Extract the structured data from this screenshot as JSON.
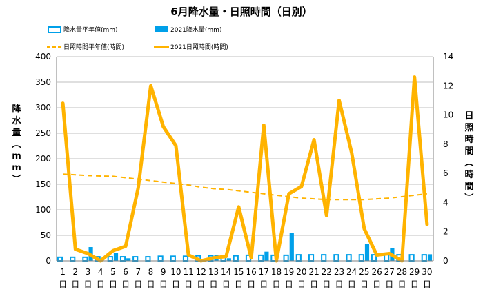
{
  "chart_data": {
    "type": "bar+line",
    "title": "6月降水量・日照時間（日別）",
    "categories": [
      "1",
      "2",
      "3",
      "4",
      "5",
      "6",
      "7",
      "8",
      "9",
      "10",
      "11",
      "12",
      "13",
      "14",
      "15",
      "16",
      "17",
      "18",
      "19",
      "20",
      "21",
      "22",
      "23",
      "24",
      "25",
      "26",
      "27",
      "28",
      "29",
      "30"
    ],
    "category_suffix": "日",
    "ylabel_left": "降水量（mm）",
    "ylabel_right": "日照時間（時間）",
    "ylim_left": [
      0,
      400
    ],
    "yticks_left": [
      0,
      50,
      100,
      150,
      200,
      250,
      300,
      350,
      400
    ],
    "ylim_right": [
      0,
      14
    ],
    "yticks_right": [
      0,
      2,
      4,
      6,
      8,
      10,
      12,
      14
    ],
    "legend": [
      {
        "name": "降水量平年値(mm)",
        "kind": "bar-outline",
        "color": "#00A0E9"
      },
      {
        "name": "2021降水量(mm)",
        "kind": "bar",
        "color": "#00A0E9"
      },
      {
        "name": "日照時間平年値(時間)",
        "kind": "dashed-line",
        "color": "#FFB300"
      },
      {
        "name": "2021日照時間(時間)",
        "kind": "line",
        "color": "#FFB300"
      }
    ],
    "series": [
      {
        "key": "rain_normal",
        "axis": "left",
        "values": [
          7,
          7,
          7,
          8,
          8,
          8,
          8,
          8,
          9,
          9,
          9,
          10,
          10,
          10,
          10,
          11,
          11,
          11,
          11,
          12,
          12,
          12,
          12,
          12,
          12,
          12,
          12,
          12,
          12,
          12
        ]
      },
      {
        "key": "rain_2021",
        "axis": "left",
        "values": [
          0,
          0,
          27,
          0,
          15,
          5,
          0,
          0,
          0,
          0,
          0,
          0,
          12,
          5,
          0,
          0,
          18,
          0,
          55,
          0,
          0,
          0,
          0,
          0,
          33,
          0,
          25,
          0,
          0,
          13
        ]
      },
      {
        "key": "sun_normal",
        "axis": "right",
        "values": [
          5.95,
          5.9,
          5.85,
          5.82,
          5.8,
          5.7,
          5.6,
          5.5,
          5.4,
          5.3,
          5.2,
          5.05,
          4.95,
          4.9,
          4.8,
          4.7,
          4.6,
          4.5,
          4.4,
          4.3,
          4.25,
          4.2,
          4.2,
          4.2,
          4.2,
          4.25,
          4.3,
          4.4,
          4.5,
          4.6
        ]
      },
      {
        "key": "sun_2021",
        "axis": "right",
        "values": [
          10.8,
          0.8,
          0.5,
          0.0,
          0.7,
          1.0,
          5.0,
          12.0,
          9.2,
          7.9,
          0.4,
          0.0,
          0.2,
          0.3,
          3.7,
          0.2,
          9.3,
          0.0,
          4.6,
          5.1,
          8.3,
          3.1,
          11.0,
          7.4,
          2.2,
          0.4,
          0.5,
          0.0,
          12.6,
          2.5
        ]
      }
    ],
    "colors": {
      "bar": "#00A0E9",
      "line": "#FFB300",
      "grid": "#BFBFBF"
    },
    "grid": true
  }
}
